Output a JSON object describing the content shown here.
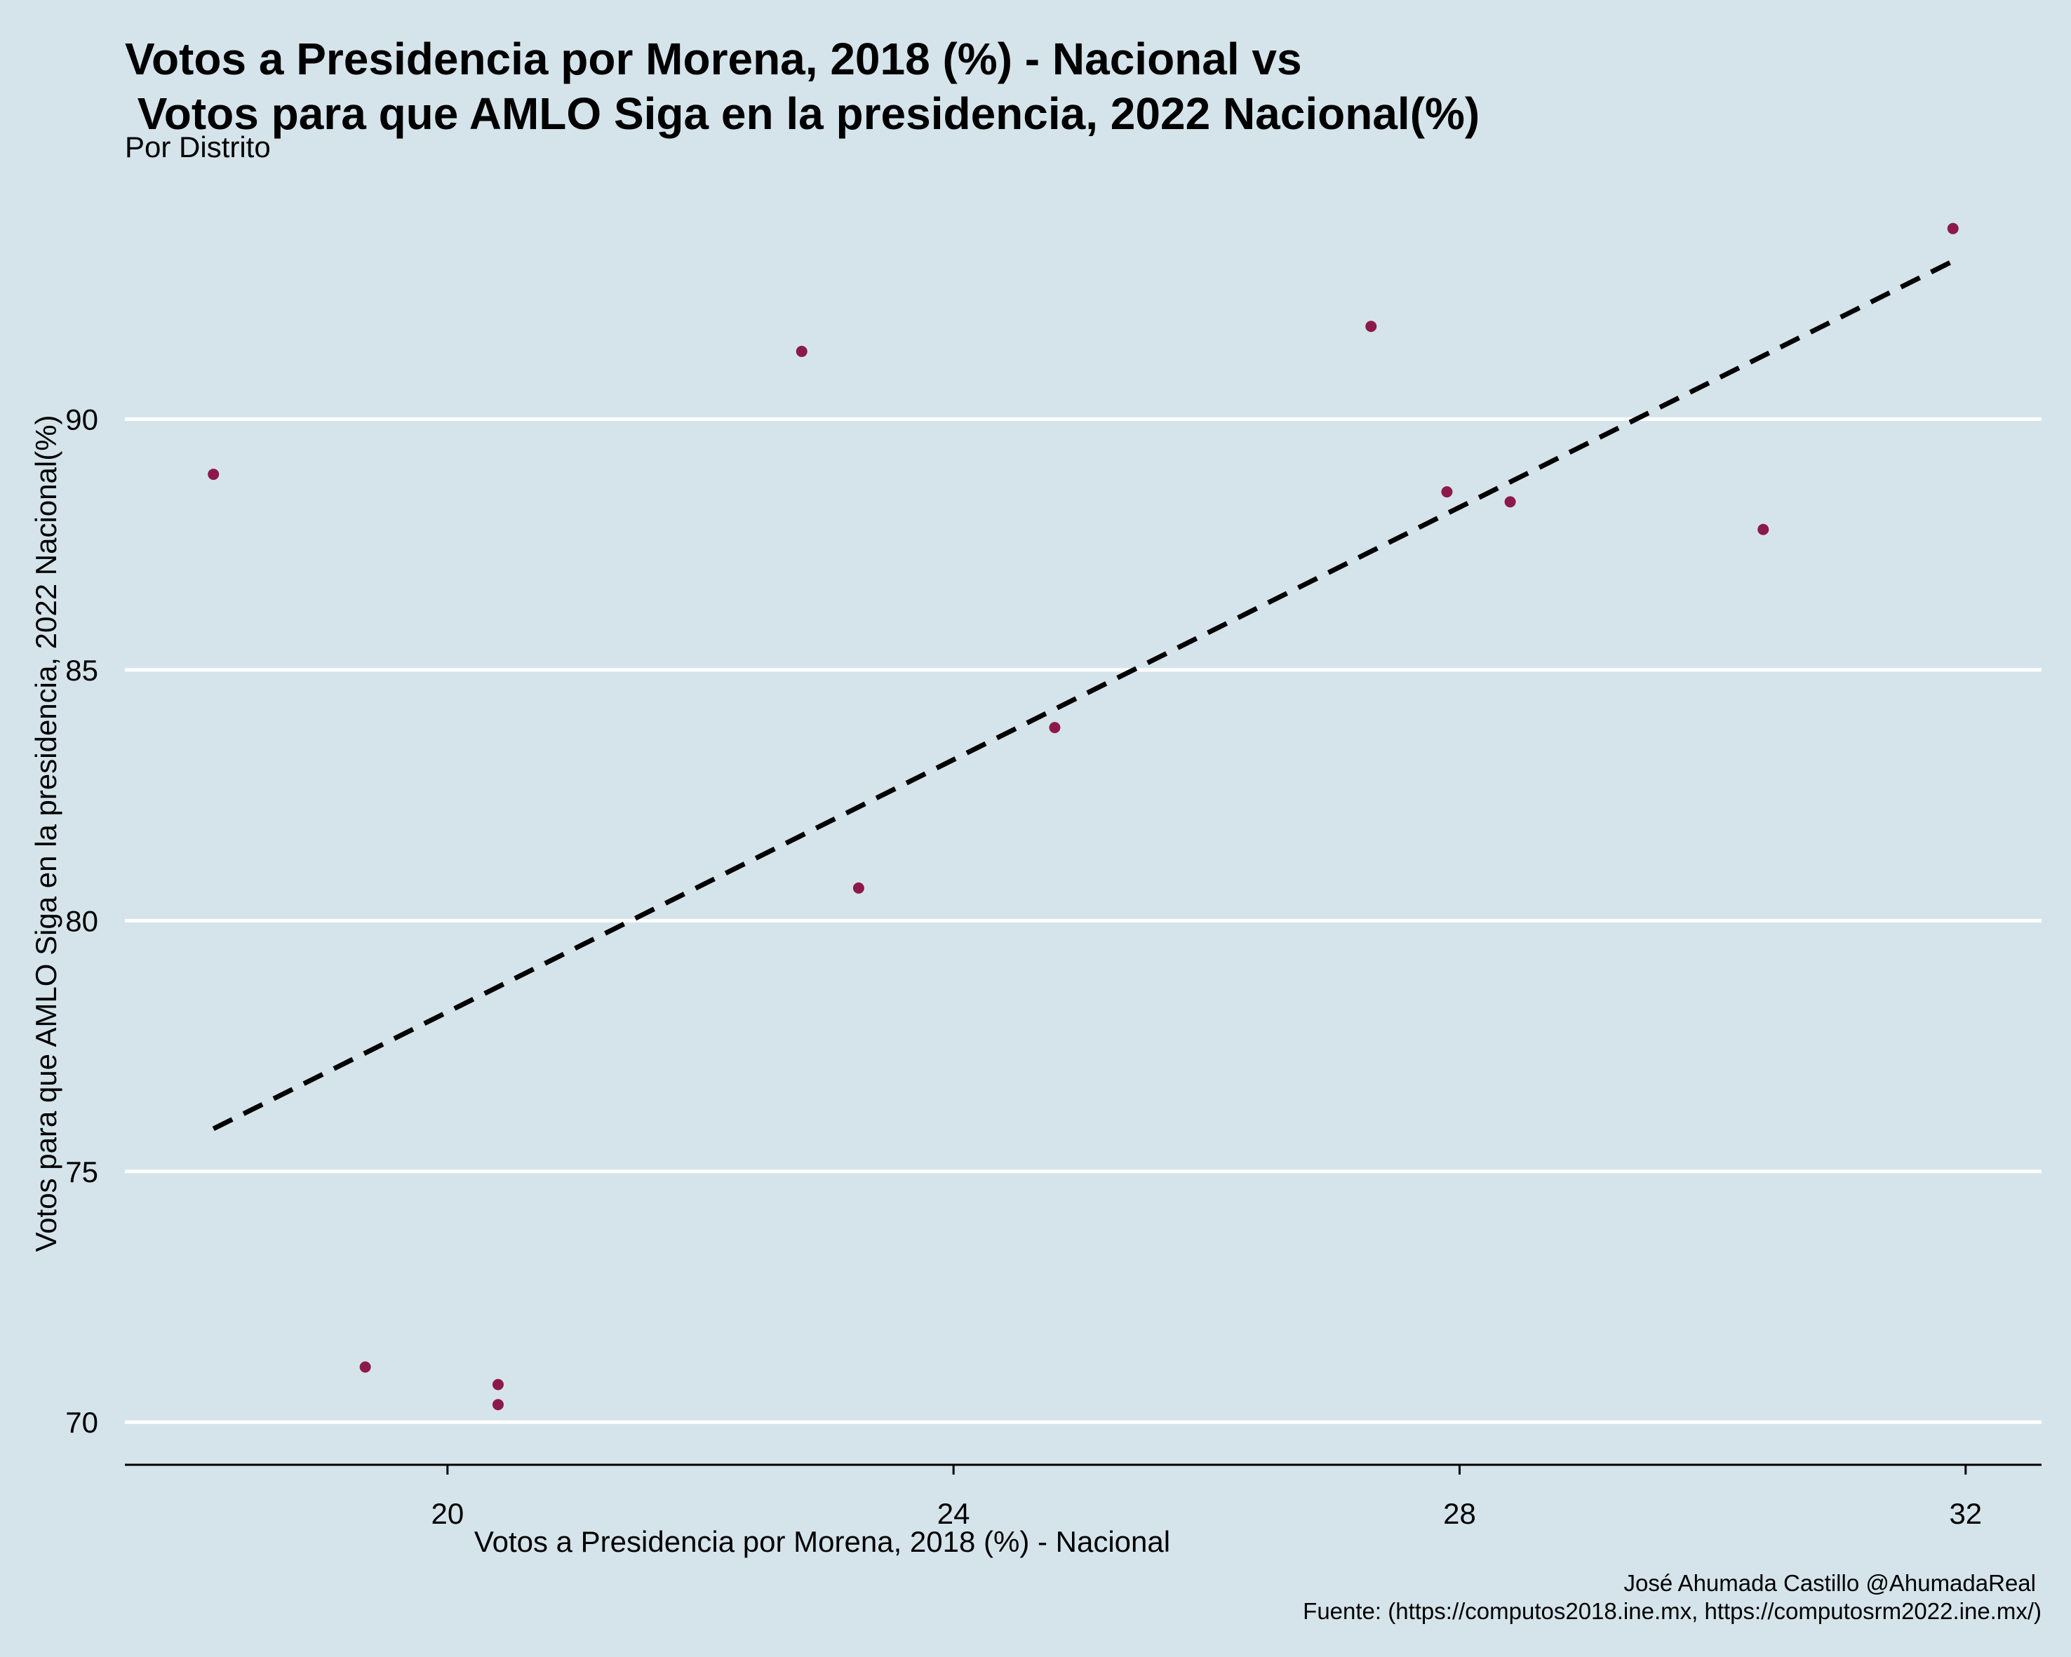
{
  "chart_data": {
    "type": "scatter",
    "title": [
      "Votos a Presidencia por Morena, 2018 (%) - Nacional vs",
      " Votos para que AMLO Siga en la presidencia, 2022 Nacional(%)"
    ],
    "subtitle": "Por Distrito",
    "xlabel": "Votos a Presidencia por Morena, 2018 (%) - Nacional",
    "ylabel": "Votos para que AMLO Siga en la presidencia, 2022 Nacional(%)",
    "caption": [
      "José Ahumada Castillo @AhumadaReal",
      "Fuente: (https://computos2018.ine.mx, https://computosrm2022.ine.mx/)"
    ],
    "xlim": [
      17.45,
      32.6
    ],
    "ylim": [
      69.15,
      95.0
    ],
    "x_ticks": [
      20,
      24,
      28,
      32
    ],
    "y_ticks": [
      70,
      75,
      80,
      85,
      90
    ],
    "grid": "horizontal major lines only",
    "colors": {
      "background": "#d5e4eb",
      "gridline": "#ffffff",
      "point": "#8b1a4a",
      "trend": "#000000"
    },
    "points": [
      {
        "x": 18.15,
        "y": 88.9
      },
      {
        "x": 19.35,
        "y": 71.1
      },
      {
        "x": 20.4,
        "y": 70.75
      },
      {
        "x": 20.4,
        "y": 70.35
      },
      {
        "x": 22.8,
        "y": 91.35
      },
      {
        "x": 23.25,
        "y": 80.65
      },
      {
        "x": 24.8,
        "y": 83.85
      },
      {
        "x": 27.3,
        "y": 91.85
      },
      {
        "x": 27.9,
        "y": 88.55
      },
      {
        "x": 28.4,
        "y": 88.35
      },
      {
        "x": 30.4,
        "y": 87.8
      },
      {
        "x": 31.9,
        "y": 93.8
      }
    ],
    "trend_line": {
      "style": "dashed",
      "x": [
        18.15,
        31.9
      ],
      "y": [
        75.85,
        93.15
      ]
    }
  }
}
